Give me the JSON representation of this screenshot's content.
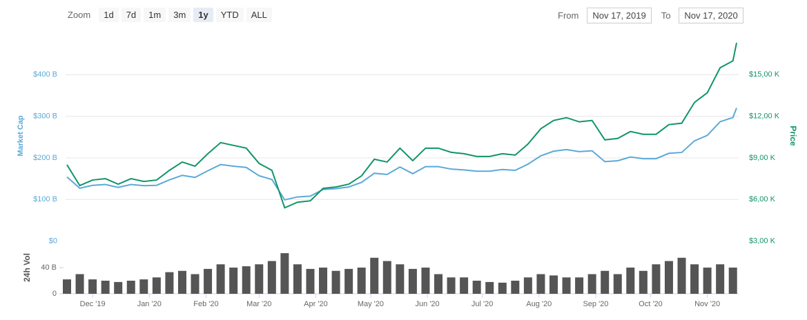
{
  "toolbar": {
    "zoom_label": "Zoom",
    "buttons": [
      "1d",
      "7d",
      "1m",
      "3m",
      "1y",
      "YTD",
      "ALL"
    ],
    "active": 4,
    "from_label": "From",
    "from": "Nov 17, 2019",
    "to_label": "To",
    "to": "Nov 17, 2020"
  },
  "chart_data": [
    {
      "type": "line",
      "ylabel": "Market Cap",
      "y2label": "Price",
      "x": [
        0,
        7,
        14,
        21,
        28,
        35,
        42,
        49,
        56,
        63,
        70,
        77,
        84,
        91,
        98,
        105,
        112,
        119,
        126,
        133,
        140,
        147,
        154,
        161,
        168,
        175,
        182,
        189,
        196,
        203,
        210,
        217,
        224,
        231,
        238,
        245,
        252,
        259,
        266,
        273,
        280,
        287,
        294,
        301,
        308,
        315,
        322,
        329,
        336,
        343,
        350,
        357,
        364,
        366
      ],
      "xlim": [
        0,
        366
      ],
      "ylim": [
        0,
        500
      ],
      "y2lim": [
        3000,
        18000
      ],
      "yticks": [
        {
          "value": 0,
          "label": "$0"
        },
        {
          "value": 100,
          "label": "$100 B"
        },
        {
          "value": 200,
          "label": "$200 B"
        },
        {
          "value": 300,
          "label": "$300 B"
        },
        {
          "value": 400,
          "label": "$400 B"
        }
      ],
      "y2ticks": [
        {
          "value": 3000,
          "label": "$3,00 K"
        },
        {
          "value": 6000,
          "label": "$6,00 K"
        },
        {
          "value": 9000,
          "label": "$9,00 K"
        },
        {
          "value": 12000,
          "label": "$12,00 K"
        },
        {
          "value": 15000,
          "label": "$15,00 K"
        }
      ],
      "grid": true,
      "series": [
        {
          "name": "Market Cap",
          "color": "#5aa9d8",
          "values": [
            154,
            127,
            134,
            136,
            129,
            136,
            133,
            134,
            147,
            158,
            153,
            169,
            184,
            180,
            177,
            157,
            148,
            99,
            106,
            108,
            124,
            126,
            130,
            141,
            163,
            160,
            178,
            162,
            179,
            179,
            173,
            171,
            168,
            168,
            172,
            170,
            185,
            205,
            216,
            220,
            215,
            217,
            191,
            193,
            202,
            198,
            198,
            211,
            213,
            241,
            254,
            287,
            297,
            320
          ]
        },
        {
          "name": "Price",
          "color": "#109466",
          "axis": "y2",
          "values": [
            8500,
            7000,
            7400,
            7500,
            7100,
            7500,
            7300,
            7400,
            8100,
            8700,
            8400,
            9300,
            10100,
            9900,
            9700,
            8600,
            8100,
            5400,
            5800,
            5900,
            6800,
            6900,
            7100,
            7700,
            8900,
            8700,
            9700,
            8800,
            9700,
            9700,
            9400,
            9300,
            9100,
            9100,
            9300,
            9200,
            10000,
            11100,
            11700,
            11900,
            11600,
            11700,
            10300,
            10400,
            10900,
            10700,
            10700,
            11400,
            11500,
            13000,
            13700,
            15500,
            16000,
            17300
          ]
        }
      ]
    },
    {
      "type": "bar",
      "ylabel": "24h Vol",
      "color": "#555555",
      "x": [
        0,
        7,
        14,
        21,
        28,
        35,
        42,
        49,
        56,
        63,
        70,
        77,
        84,
        91,
        98,
        105,
        112,
        119,
        126,
        133,
        140,
        147,
        154,
        161,
        168,
        175,
        182,
        189,
        196,
        203,
        210,
        217,
        224,
        231,
        238,
        245,
        252,
        259,
        266,
        273,
        280,
        287,
        294,
        301,
        308,
        315,
        322,
        329,
        336,
        343,
        350,
        357,
        364
      ],
      "values": [
        22,
        30,
        22,
        20,
        18,
        20,
        22,
        25,
        33,
        35,
        30,
        38,
        45,
        40,
        42,
        45,
        50,
        62,
        45,
        38,
        40,
        35,
        38,
        40,
        55,
        50,
        45,
        38,
        40,
        30,
        25,
        25,
        20,
        18,
        17,
        20,
        25,
        30,
        28,
        25,
        25,
        30,
        35,
        30,
        40,
        35,
        45,
        50,
        55,
        45,
        40,
        45,
        40
      ],
      "xlim": [
        0,
        366
      ],
      "ylim": [
        0,
        80
      ],
      "yticks": [
        0,
        {
          "value": 40,
          "label": "40 B"
        }
      ],
      "xticks": [
        {
          "value": 14,
          "label": "Dec '19"
        },
        {
          "value": 45,
          "label": "Jan '20"
        },
        {
          "value": 76,
          "label": "Feb '20"
        },
        {
          "value": 105,
          "label": "Mar '20"
        },
        {
          "value": 136,
          "label": "Apr '20"
        },
        {
          "value": 166,
          "label": "May '20"
        },
        {
          "value": 197,
          "label": "Jun '20"
        },
        {
          "value": 227,
          "label": "Jul '20"
        },
        {
          "value": 258,
          "label": "Aug '20"
        },
        {
          "value": 289,
          "label": "Sep '20"
        },
        {
          "value": 319,
          "label": "Oct '20"
        },
        {
          "value": 350,
          "label": "Nov '20"
        }
      ]
    }
  ]
}
